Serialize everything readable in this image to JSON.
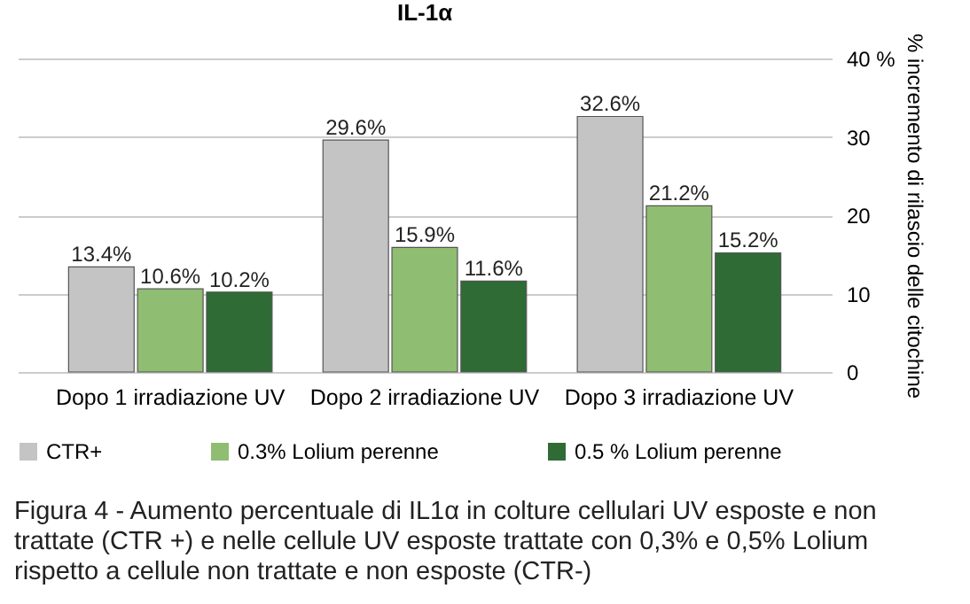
{
  "chart_data": {
    "type": "bar",
    "title": "IL-1α",
    "ylabel": "% incremento di rilascio delle citochine",
    "categories": [
      "Dopo 1 irradiazione UV",
      "Dopo 2 irradiazione UV",
      "Dopo 3 irradiazione UV"
    ],
    "series": [
      {
        "name": "CTR+",
        "color": "#c4c4c4",
        "values": [
          13.4,
          29.6,
          32.6
        ],
        "value_labels": [
          "13.4%",
          "29.6%",
          "32.6%"
        ]
      },
      {
        "name": "0.3% Lolium perenne",
        "color": "#8fbd72",
        "values": [
          10.6,
          15.9,
          21.2
        ],
        "value_labels": [
          "10.6%",
          "15.9%",
          "21.2%"
        ]
      },
      {
        "name": "0.5 % Lolium perenne",
        "color": "#2e6b35",
        "values": [
          10.2,
          11.6,
          15.2
        ],
        "value_labels": [
          "10.2%",
          "11.6%",
          "15.2%"
        ]
      }
    ],
    "ylim": [
      0,
      40
    ],
    "yticks": [
      0,
      10,
      20,
      30,
      {
        "value": 40,
        "label": "40 %"
      }
    ],
    "grid": "y",
    "legend": "bottom",
    "annotations": [
      "Figura 4 - Aumento percentuale di IL1α in colture cellulari UV esposte e non trattate (CTR +) e nelle cellule UV esposte trattate con 0,3% e 0,5% Lolium rispetto a cellule non trattate e non esposte (CTR-)"
    ]
  }
}
